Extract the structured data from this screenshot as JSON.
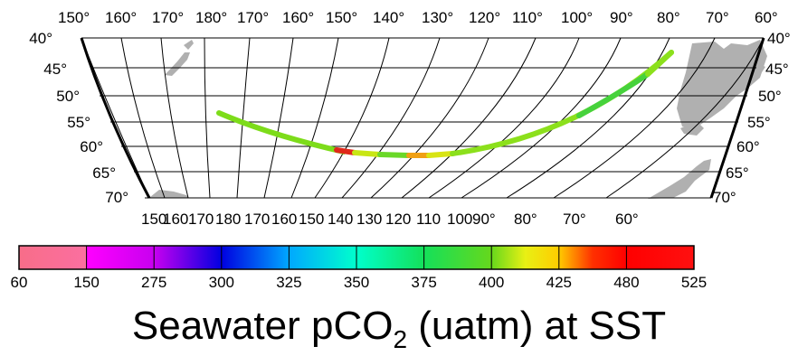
{
  "map": {
    "top_lon_labels": [
      "150°",
      "160°",
      "170°",
      "180°",
      "170°",
      "160°",
      "150°",
      "140°",
      "130°",
      "120°",
      "110°",
      "100°",
      "90°",
      "80°",
      "70°",
      "60°"
    ],
    "bottom_lon_labels": [
      "150",
      "160",
      "170",
      "180",
      "170",
      "160",
      "150",
      "140",
      "130",
      "120",
      "110",
      "100",
      "90°",
      "80°",
      "70°",
      "60°"
    ],
    "lat_labels_left": [
      "40°",
      "45°",
      "50°",
      "55°",
      "60°",
      "65°",
      "70°"
    ],
    "lat_labels_right": [
      "40°",
      "45°",
      "50°",
      "55°",
      "60°",
      "65°",
      "70°"
    ],
    "track_colors": {
      "main": "#7ddc1a",
      "alt": "#b8e414",
      "yellow": "#f2e614",
      "orange": "#f79a14",
      "red": "#e31a1a",
      "green": "#3cd24a"
    },
    "land_color": "#b0b0b0"
  },
  "colorbar": {
    "ticks": [
      "60",
      "150",
      "275",
      "300",
      "325",
      "350",
      "375",
      "400",
      "425",
      "480",
      "525"
    ],
    "colors": [
      "#f9738a",
      "#ff00ff",
      "#9400d3",
      "#0000ff",
      "#00bfff",
      "#00ffd5",
      "#1aeb66",
      "#5ad21e",
      "#b4f014",
      "#ffd200",
      "#ff0000",
      "#ff0000",
      "#ff1a1a"
    ]
  },
  "legend": {
    "title_main": "Seawater pCO",
    "title_sub": "2",
    "title_rest": " (uatm) at SST"
  }
}
